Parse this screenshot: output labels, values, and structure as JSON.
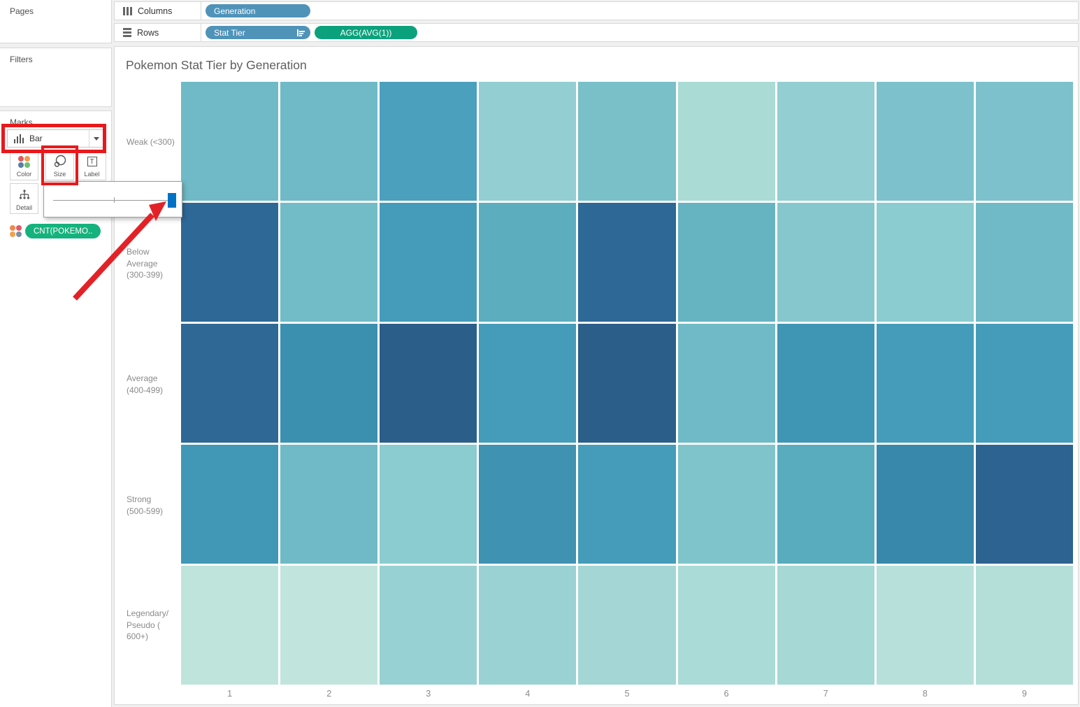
{
  "sidebar": {
    "pages_label": "Pages",
    "filters_label": "Filters",
    "marks": {
      "label": "Marks",
      "mark_type": "Bar",
      "mark_type_icon": "bar-chart-icon",
      "buttons": [
        {
          "label": "Color",
          "icon": "color-dots-icon"
        },
        {
          "label": "Size",
          "icon": "size-circles-icon"
        },
        {
          "label": "Label",
          "icon": "text-label-icon"
        },
        {
          "label": "Detail",
          "icon": "detail-tree-icon"
        }
      ],
      "color_icon_dots": [
        "#e05c5c",
        "#f09b4e",
        "#5b7ea1",
        "#6fbf73"
      ],
      "field_pill": {
        "label": "CNT(POKEMO..",
        "color": "#15b27d",
        "icon_dots": [
          "#f0884f",
          "#e05c67",
          "#f0a24f",
          "#7f8fa6"
        ]
      }
    }
  },
  "shelves": {
    "columns_label": "Columns",
    "rows_label": "Rows",
    "columns_pills": [
      {
        "label": "Generation",
        "color": "#4f93b9"
      }
    ],
    "rows_pills": [
      {
        "label": "Stat Tier",
        "color": "#4f93b9",
        "sorted": true
      },
      {
        "label": "AGG(AVG(1))",
        "color": "#0ba17c"
      }
    ]
  },
  "annotations": {
    "highlight_color": "#e8191c",
    "slider_handle_color": "#0072c6",
    "size_slider": {
      "position": "max"
    }
  },
  "chart_data": {
    "type": "heatmap",
    "title": "Pokemon Stat Tier by Generation",
    "xlabel": "",
    "ylabel": "",
    "x_categories": [
      "1",
      "2",
      "3",
      "4",
      "5",
      "6",
      "7",
      "8",
      "9"
    ],
    "y_categories": [
      "Weak (<300)",
      "Below Average (300-399)",
      "Average (400-499)",
      "Strong (500-599)",
      "Legendary/ Pseudo ( 600+)"
    ],
    "y_tick_lines": [
      [
        "Weak (<300)"
      ],
      [
        "Below",
        "Average",
        "(300-399)"
      ],
      [
        "Average",
        "(400-499)"
      ],
      [
        "Strong",
        "(500-599)"
      ],
      [
        "Legendary/",
        "Pseudo (",
        "600+)"
      ]
    ],
    "color_encoding": "darker blue = higher CNT(POKEMON)",
    "cell_colors": [
      [
        "#6fbac6",
        "#6fbac6",
        "#4aa0bd",
        "#93ced2",
        "#79c0c9",
        "#aadbd5",
        "#93ced2",
        "#7cc1cb",
        "#7cc1cb"
      ],
      [
        "#2e6897",
        "#72bcc7",
        "#459bba",
        "#5caebf",
        "#2e6897",
        "#66b4c2",
        "#86c7cd",
        "#8bccd0",
        "#6fbac6"
      ],
      [
        "#2f6795",
        "#3c90af",
        "#2c5e8a",
        "#459cba",
        "#2c5e8a",
        "#6fbac6",
        "#3f96b4",
        "#459cba",
        "#459cba"
      ],
      [
        "#4098b6",
        "#6fbac6",
        "#8bccd0",
        "#3f92b2",
        "#459cba",
        "#80c4cb",
        "#58acbe",
        "#3888ab",
        "#2d6390"
      ],
      [
        "#bfe4dc",
        "#c1e5dd",
        "#98d1d3",
        "#9ad2d4",
        "#a3d6d5",
        "#aadbd7",
        "#a6d8d6",
        "#b7e0da",
        "#b4dfd9"
      ]
    ]
  }
}
